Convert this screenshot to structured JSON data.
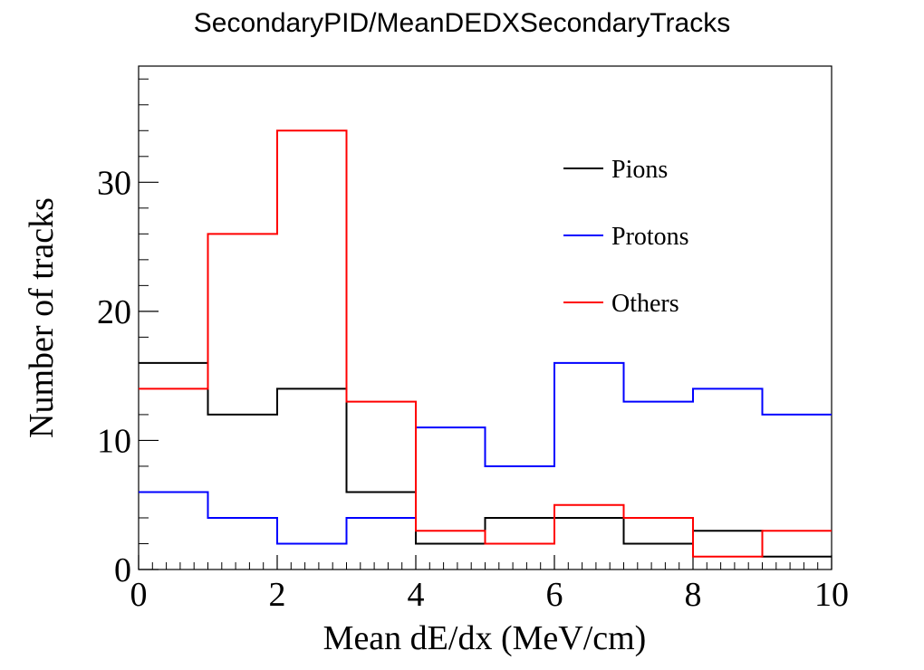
{
  "chart_data": {
    "type": "histogram",
    "title": "SecondaryPID/MeanDEDXSecondaryTracks",
    "xlabel": "Mean dE/dx (MeV/cm)",
    "ylabel": "Number of tracks",
    "xlim": [
      0,
      10
    ],
    "ylim": [
      0,
      39
    ],
    "bin_edges": [
      0,
      1,
      2,
      3,
      4,
      5,
      6,
      7,
      8,
      9,
      10
    ],
    "x_ticks": [
      0,
      2,
      4,
      6,
      8,
      10
    ],
    "y_ticks": [
      0,
      10,
      20,
      30
    ],
    "grid": false,
    "legend_position": "top-right",
    "series": [
      {
        "name": "Pions",
        "color": "#000000",
        "values": [
          16,
          12,
          14,
          6,
          2,
          4,
          4,
          2,
          3,
          1
        ]
      },
      {
        "name": "Protons",
        "color": "#0000ff",
        "values": [
          6,
          4,
          2,
          4,
          11,
          8,
          16,
          13,
          14,
          12
        ]
      },
      {
        "name": "Others",
        "color": "#ff0000",
        "values": [
          14,
          26,
          34,
          13,
          3,
          2,
          5,
          4,
          1,
          3
        ]
      }
    ]
  }
}
